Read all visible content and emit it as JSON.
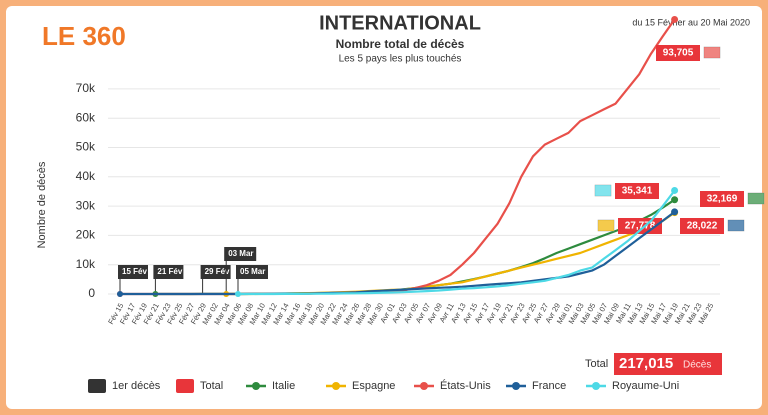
{
  "brand": "LE 360",
  "chart_data": {
    "type": "line",
    "title": "INTERNATIONAL",
    "subtitle": "Nombre total de décès",
    "subtitle2": "Les 5 pays les plus touchés",
    "period": "du 15 Février au 20 Mai 2020",
    "ylabel": "Nombre de décès",
    "categories": [
      "Fév 15",
      "Fév 17",
      "Fév 19",
      "Fév 21",
      "Fév 23",
      "Fév 25",
      "Fév 27",
      "Fév 29",
      "Mar 02",
      "Mar 04",
      "Mar 06",
      "Mar 08",
      "Mar 10",
      "Mar 12",
      "Mar 14",
      "Mar 16",
      "Mar 18",
      "Mar 20",
      "Mar 22",
      "Mar 24",
      "Mar 26",
      "Mar 28",
      "Mar 30",
      "Avr 01",
      "Avr 03",
      "Avr 05",
      "Avr 07",
      "Avr 09",
      "Avr 11",
      "Avr 13",
      "Avr 15",
      "Avr 17",
      "Avr 19",
      "Avr 21",
      "Avr 23",
      "Avr 25",
      "Avr 27",
      "Avr 29",
      "Mai 01",
      "Mai 03",
      "Mai 05",
      "Mai 07",
      "Mai 09",
      "Mai 11",
      "Mai 13",
      "Mai 15",
      "Mai 17",
      "Mai 19",
      "Mai 21",
      "Mai 23",
      "Mai 25"
    ],
    "ylim": [
      0,
      95000
    ],
    "yticks": [
      0,
      {
        "value": 10000,
        "label": "10k"
      },
      {
        "value": 20000,
        "label": "20k"
      },
      {
        "value": 30000,
        "label": "30k"
      },
      {
        "value": 40000,
        "label": "40k"
      },
      {
        "value": 50000,
        "label": "50k"
      },
      {
        "value": 60000,
        "label": "60k"
      },
      {
        "value": 70000,
        "label": "70k"
      }
    ],
    "series": [
      {
        "name": "Italie",
        "color": "#2e8b3e",
        "end_label": "32,169",
        "values": [
          null,
          null,
          null,
          1,
          3,
          11,
          17,
          29,
          40,
          50,
          60,
          80,
          100,
          130,
          160,
          200,
          260,
          330,
          420,
          520,
          600,
          800,
          1000,
          1200,
          1600,
          2000,
          2500,
          3000,
          3500,
          4300,
          5100,
          6000,
          7000,
          8000,
          9200,
          10500,
          12200,
          14000,
          15500,
          17000,
          18500,
          20000,
          21500,
          23000,
          25000,
          27000,
          29500,
          32169,
          null,
          null,
          null
        ]
      },
      {
        "name": "Espagne",
        "color": "#f0b400",
        "end_label": "27,778",
        "values": [
          null,
          null,
          null,
          null,
          null,
          null,
          null,
          null,
          null,
          1,
          5,
          10,
          30,
          60,
          120,
          200,
          300,
          400,
          500,
          650,
          800,
          1000,
          1200,
          1400,
          1500,
          2000,
          2500,
          3000,
          3500,
          4000,
          5000,
          6000,
          7000,
          8000,
          9000,
          10000,
          11000,
          12000,
          13000,
          14000,
          15500,
          17000,
          18500,
          20000,
          21500,
          23000,
          25000,
          27778,
          null,
          null,
          null
        ]
      },
      {
        "name": "États-Unis",
        "color": "#e8504a",
        "end_label": "93,705",
        "values": [
          0,
          0,
          0,
          0,
          0,
          0,
          0,
          1,
          6,
          11,
          14,
          21,
          31,
          47,
          60,
          97,
          150,
          250,
          350,
          450,
          550,
          650,
          800,
          1000,
          1200,
          2000,
          3000,
          4500,
          6500,
          10000,
          14000,
          19000,
          24000,
          31000,
          40000,
          47000,
          51000,
          53000,
          55000,
          59000,
          61000,
          63000,
          65000,
          70000,
          75000,
          82000,
          88000,
          93705,
          null,
          null,
          null
        ]
      },
      {
        "name": "France",
        "color": "#1f5f99",
        "end_label": "28,022",
        "values": [
          1,
          1,
          1,
          1,
          1,
          1,
          2,
          2,
          3,
          4,
          7,
          19,
          48,
          91,
          127,
          148,
          175,
          264,
          372,
          450,
          562,
          860,
          1100,
          1300,
          1500,
          1700,
          1900,
          2100,
          2300,
          2500,
          2800,
          3100,
          3400,
          3700,
          4000,
          4500,
          5000,
          5500,
          6000,
          7000,
          8000,
          10000,
          13000,
          16000,
          19000,
          22000,
          25000,
          28022,
          null,
          null,
          null
        ]
      },
      {
        "name": "Royaume-Uni",
        "color": "#4dd9e6",
        "end_label": "35,341",
        "values": [
          null,
          null,
          null,
          null,
          null,
          null,
          null,
          null,
          null,
          null,
          1,
          2,
          5,
          10,
          21,
          35,
          55,
          100,
          150,
          200,
          250,
          300,
          400,
          500,
          600,
          800,
          1000,
          1200,
          1500,
          1800,
          2000,
          2300,
          2600,
          3000,
          3500,
          4000,
          4500,
          5500,
          6500,
          8000,
          9000,
          12000,
          15000,
          18000,
          21500,
          25000,
          30000,
          35341,
          null,
          null,
          null
        ]
      }
    ],
    "first_deaths": [
      "15 Fév",
      "21 Fév",
      "29 Fév",
      "03 Mar",
      "05 Mar"
    ],
    "legend_extra": [
      "1er décès",
      "Total"
    ],
    "total": {
      "label": "Total",
      "value": "217,015",
      "unit": "Décès"
    }
  }
}
